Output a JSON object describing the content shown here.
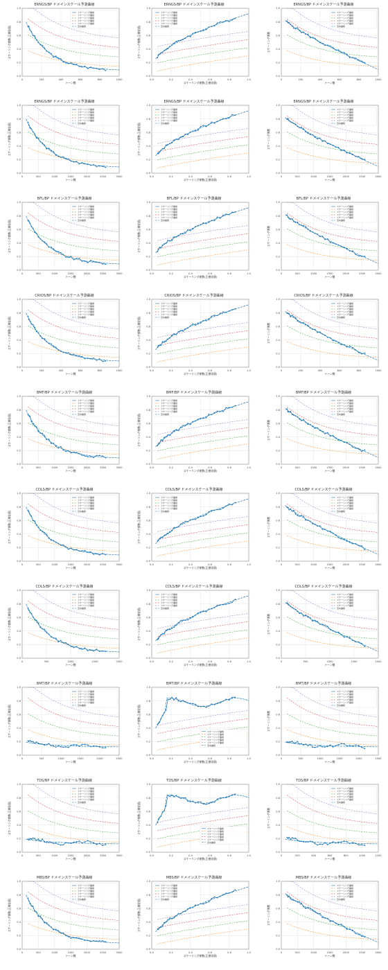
{
  "colors": {
    "actual": "#1f77b4",
    "scaling_100k": "#ff7f0e",
    "scaling_1m": "#2ca02c",
    "scaling_10m": "#d62728",
    "scaling_30m": "#9467bd",
    "fit": "#1f77b4",
    "grid": "#dddddd",
    "axis": "#333333"
  },
  "legend_text": {
    "actual": "スケーリング曲線",
    "s1": "スケーリング曲線",
    "s2": "スケーリング曲線",
    "s3": "スケーリング曲線",
    "s4": "スケーリング曲線",
    "fit": "近似曲線"
  },
  "chart_data": [
    {
      "type": "line",
      "title": "ERNGS/BP ドメインスケール予測曲線",
      "xlabel": "トーン数",
      "ylabel": "スケーリング係数(正規化値)",
      "xlim": [
        0,
        1000
      ],
      "ylim": [
        0,
        1
      ],
      "x_ticks": [
        "0",
        "200",
        "400",
        "600",
        "800",
        "1000"
      ],
      "y_ticks": [
        "0.0",
        "0.2",
        "0.4",
        "0.6",
        "0.8",
        "1.0"
      ],
      "trend": "decay",
      "legend_position": "top-right"
    },
    {
      "type": "line",
      "title": "ERNGS/BP ドメインスケール予測曲線",
      "xlabel": "スケーリング係数(正規化値)",
      "ylabel": "スケーリング係数(正規化値)",
      "xlim": [
        0,
        1
      ],
      "ylim": [
        0,
        1
      ],
      "x_ticks": [
        "0.0",
        "0.2",
        "0.4",
        "0.6",
        "0.8",
        "1.0"
      ],
      "y_ticks": [
        "0.0",
        "0.2",
        "0.4",
        "0.6",
        "0.8",
        "1.0"
      ],
      "trend": "grow",
      "legend_position": "top-left"
    },
    {
      "type": "line",
      "title": "ERNGS/BP ドメインスケール予測曲線",
      "xlabel": "トーン数",
      "ylabel": "スケーリング係数",
      "xlim": [
        0,
        1000
      ],
      "ylim": [
        0,
        1
      ],
      "x_ticks": [
        "0",
        "200",
        "400",
        "600",
        "800",
        "1000"
      ],
      "y_ticks": [
        "0.0",
        "0.2",
        "0.4",
        "0.6",
        "0.8",
        "1.0"
      ],
      "trend": "decline",
      "legend_position": "top-right"
    },
    {
      "type": "line",
      "title": "ERNGS/BP ドメインスケール予測曲線",
      "xlabel": "トーン数",
      "ylabel": "スケーリング係数(正規化値)",
      "xlim": [
        0,
        3000
      ],
      "ylim": [
        0,
        1
      ],
      "x_ticks": [
        "0",
        "500",
        "1000",
        "1500",
        "2000",
        "2500",
        "3000"
      ],
      "y_ticks": [
        "0.0",
        "0.2",
        "0.4",
        "0.6",
        "0.8",
        "1.0"
      ],
      "trend": "decay",
      "legend_position": "top-right"
    },
    {
      "type": "line",
      "title": "ERNGS/BP ドメインスケール予測曲線",
      "xlabel": "スケーリング係数(正規化値)",
      "ylabel": "スケーリング係数(正規化値)",
      "xlim": [
        0,
        1
      ],
      "ylim": [
        0,
        1
      ],
      "x_ticks": [
        "0.0",
        "0.2",
        "0.4",
        "0.6",
        "0.8",
        "1.0"
      ],
      "y_ticks": [
        "0.0",
        "0.2",
        "0.4",
        "0.6",
        "0.8",
        "1.0"
      ],
      "trend": "grow",
      "legend_position": "top-left"
    },
    {
      "type": "line",
      "title": "ERNGS/BP ドメインスケール予測曲線",
      "xlabel": "トーン数",
      "ylabel": "スケーリング係数",
      "xlim": [
        0,
        3000
      ],
      "ylim": [
        0,
        1
      ],
      "x_ticks": [
        "0",
        "500",
        "1000",
        "1500",
        "2000",
        "2500",
        "3000"
      ],
      "y_ticks": [
        "0.0",
        "0.2",
        "0.4",
        "0.6",
        "0.8",
        "1.0"
      ],
      "trend": "decline",
      "legend_position": "top-right"
    },
    {
      "type": "line",
      "title": "BFL/BP ドメインスケール予測曲線",
      "xlabel": "トーン数",
      "ylabel": "スケーリング係数(正規化値)",
      "xlim": [
        0,
        3000
      ],
      "ylim": [
        0,
        1
      ],
      "x_ticks": [
        "0",
        "500",
        "1000",
        "1500",
        "2000",
        "2500",
        "3000"
      ],
      "y_ticks": [
        "0.0",
        "0.2",
        "0.4",
        "0.6",
        "0.8",
        "1.0"
      ],
      "trend": "decay",
      "legend_position": "top-right"
    },
    {
      "type": "line",
      "title": "BFL/BP ドメインスケール予測曲線",
      "xlabel": "スケーリング係数(正規化値)",
      "ylabel": "スケーリング係数(正規化値)",
      "xlim": [
        0,
        1
      ],
      "ylim": [
        0,
        1
      ],
      "x_ticks": [
        "0.0",
        "0.2",
        "0.4",
        "0.6",
        "0.8",
        "1.0"
      ],
      "y_ticks": [
        "0.0",
        "0.2",
        "0.4",
        "0.6",
        "0.8",
        "1.0"
      ],
      "trend": "grow",
      "legend_position": "top-left"
    },
    {
      "type": "line",
      "title": "BFL/BP ドメインスケール予測曲線",
      "xlabel": "トーン数",
      "ylabel": "スケーリング係数",
      "xlim": [
        0,
        3000
      ],
      "ylim": [
        0,
        1
      ],
      "x_ticks": [
        "0",
        "500",
        "1000",
        "1500",
        "2000",
        "2500",
        "3000"
      ],
      "y_ticks": [
        "0.0",
        "0.2",
        "0.4",
        "0.6",
        "0.8",
        "1.0"
      ],
      "trend": "decline",
      "legend_position": "top-right"
    },
    {
      "type": "line",
      "title": "CRIOS/BP ドメインスケール予測曲線",
      "xlabel": "トーン数",
      "ylabel": "スケーリング係数(正規化値)",
      "xlim": [
        0,
        1000
      ],
      "ylim": [
        0,
        1
      ],
      "x_ticks": [
        "0",
        "200",
        "400",
        "600",
        "800",
        "1000"
      ],
      "y_ticks": [
        "0.0",
        "0.2",
        "0.4",
        "0.6",
        "0.8",
        "1.0"
      ],
      "trend": "decay",
      "legend_position": "top-right"
    },
    {
      "type": "line",
      "title": "CRIOS/BP ドメインスケール予測曲線",
      "xlabel": "スケーリング係数(正規化値)",
      "ylabel": "スケーリング係数(正規化値)",
      "xlim": [
        0,
        1
      ],
      "ylim": [
        0,
        1
      ],
      "x_ticks": [
        "0.0",
        "0.2",
        "0.4",
        "0.6",
        "0.8",
        "1.0"
      ],
      "y_ticks": [
        "0.0",
        "0.2",
        "0.4",
        "0.6",
        "0.8",
        "1.0"
      ],
      "trend": "grow",
      "legend_position": "top-left"
    },
    {
      "type": "line",
      "title": "CRIOS/BP ドメインスケール予測曲線",
      "xlabel": "トーン数",
      "ylabel": "スケーリング係数",
      "xlim": [
        0,
        1000
      ],
      "ylim": [
        0,
        1
      ],
      "x_ticks": [
        "0",
        "200",
        "400",
        "600",
        "800",
        "1000"
      ],
      "y_ticks": [
        "0.0",
        "0.2",
        "0.4",
        "0.6",
        "0.8",
        "1.0"
      ],
      "trend": "decline",
      "legend_position": "top-right"
    },
    {
      "type": "line",
      "title": "BMF/BP ドメインスケール予測曲線",
      "xlabel": "トーン数",
      "ylabel": "スケーリング係数(正規化値)",
      "xlim": [
        0,
        3000
      ],
      "ylim": [
        0,
        1
      ],
      "x_ticks": [
        "0",
        "500",
        "1000",
        "1500",
        "2000",
        "2500",
        "3000"
      ],
      "y_ticks": [
        "0.0",
        "0.2",
        "0.4",
        "0.6",
        "0.8",
        "1.0"
      ],
      "trend": "decay",
      "legend_position": "top-right"
    },
    {
      "type": "line",
      "title": "BMF/BP ドメインスケール予測曲線",
      "xlabel": "スケーリング係数(正規化値)",
      "ylabel": "スケーリング係数(正規化値)",
      "xlim": [
        0,
        1
      ],
      "ylim": [
        0,
        1
      ],
      "x_ticks": [
        "0.0",
        "0.2",
        "0.4",
        "0.6",
        "0.8",
        "1.0"
      ],
      "y_ticks": [
        "0.0",
        "0.2",
        "0.4",
        "0.6",
        "0.8",
        "1.0"
      ],
      "trend": "grow",
      "legend_position": "top-left"
    },
    {
      "type": "line",
      "title": "BMF/BP ドメインスケール予測曲線",
      "xlabel": "トーン数",
      "ylabel": "スケーリング係数",
      "xlim": [
        0,
        3000
      ],
      "ylim": [
        0,
        1
      ],
      "x_ticks": [
        "0",
        "500",
        "1000",
        "1500",
        "2000",
        "2500",
        "3000"
      ],
      "y_ticks": [
        "0.0",
        "0.2",
        "0.4",
        "0.6",
        "0.8",
        "1.0"
      ],
      "trend": "decline",
      "legend_position": "top-right"
    },
    {
      "type": "line",
      "title": "CDLS/BP ドメインスケール予測曲線",
      "xlabel": "トーン数",
      "ylabel": "スケーリング係数(正規化値)",
      "xlim": [
        0,
        3000
      ],
      "ylim": [
        0,
        1
      ],
      "x_ticks": [
        "0",
        "500",
        "1000",
        "1500",
        "2000",
        "2500",
        "3000"
      ],
      "y_ticks": [
        "0.0",
        "0.2",
        "0.4",
        "0.6",
        "0.8",
        "1.0"
      ],
      "trend": "decay",
      "legend_position": "top-right"
    },
    {
      "type": "line",
      "title": "CDLS/BP ドメインスケール予測曲線",
      "xlabel": "スケーリング係数(正規化値)",
      "ylabel": "スケーリング係数(正規化値)",
      "xlim": [
        0,
        1
      ],
      "ylim": [
        0,
        1
      ],
      "x_ticks": [
        "0.0",
        "0.2",
        "0.4",
        "0.6",
        "0.8",
        "1.0"
      ],
      "y_ticks": [
        "0.0",
        "0.2",
        "0.4",
        "0.6",
        "0.8",
        "1.0"
      ],
      "trend": "grow",
      "legend_position": "top-left"
    },
    {
      "type": "line",
      "title": "CDLS/BP ドメインスケール予測曲線",
      "xlabel": "トーン数",
      "ylabel": "スケーリング係数",
      "xlim": [
        0,
        3000
      ],
      "ylim": [
        0,
        1
      ],
      "x_ticks": [
        "0",
        "500",
        "1000",
        "1500",
        "2000",
        "2500",
        "3000"
      ],
      "y_ticks": [
        "0.0",
        "0.2",
        "0.4",
        "0.6",
        "0.8",
        "1.0"
      ],
      "trend": "decline",
      "legend_position": "top-right"
    },
    {
      "type": "line",
      "title": "CDLS/BP ドメインスケール予測曲線",
      "xlabel": "トーン数",
      "ylabel": "スケーリング係数(正規化値)",
      "xlim": [
        0,
        2000
      ],
      "ylim": [
        0,
        1
      ],
      "x_ticks": [
        "0",
        "500",
        "1000",
        "1500",
        "2000"
      ],
      "y_ticks": [
        "0.0",
        "0.2",
        "0.4",
        "0.6",
        "0.8",
        "1.0"
      ],
      "trend": "decay",
      "legend_position": "top-right"
    },
    {
      "type": "line",
      "title": "CDLS/BP ドメインスケール予測曲線",
      "xlabel": "スケーリング係数(正規化値)",
      "ylabel": "スケーリング係数(正規化値)",
      "xlim": [
        0,
        1
      ],
      "ylim": [
        0,
        1
      ],
      "x_ticks": [
        "0.0",
        "0.2",
        "0.4",
        "0.6",
        "0.8",
        "1.0"
      ],
      "y_ticks": [
        "0.0",
        "0.2",
        "0.4",
        "0.6",
        "0.8",
        "1.0"
      ],
      "trend": "grow",
      "legend_position": "top-left"
    },
    {
      "type": "line",
      "title": "CDLS/BP ドメインスケール予測曲線",
      "xlabel": "トーン数",
      "ylabel": "スケーリング係数",
      "xlim": [
        0,
        2000
      ],
      "ylim": [
        0,
        1
      ],
      "x_ticks": [
        "0",
        "500",
        "1000",
        "1500",
        "2000"
      ],
      "y_ticks": [
        "0.0",
        "0.2",
        "0.4",
        "0.6",
        "0.8",
        "1.0"
      ],
      "trend": "decline",
      "legend_position": "top-right"
    },
    {
      "type": "line",
      "title": "BMT/BP ドメインスケール予測曲線",
      "xlabel": "トーン数",
      "ylabel": "スケーリング係数(正規化値)",
      "xlim": [
        0,
        2500
      ],
      "ylim": [
        0,
        1
      ],
      "x_ticks": [
        "0",
        "500",
        "1000",
        "1500",
        "2000",
        "2500"
      ],
      "y_ticks": [
        "0.0",
        "0.2",
        "0.4",
        "0.6",
        "0.8",
        "1.0"
      ],
      "trend": "flat",
      "legend_position": "top-right"
    },
    {
      "type": "line",
      "title": "BMT/BP ドメインスケール予測曲線",
      "xlabel": "スケーリング係数(正規化値)",
      "ylabel": "スケーリング係数(正規化値)",
      "xlim": [
        0,
        1
      ],
      "ylim": [
        0,
        1
      ],
      "x_ticks": [
        "0.0",
        "0.2",
        "0.4",
        "0.6",
        "0.8",
        "1.0"
      ],
      "y_ticks": [
        "0.0",
        "0.2",
        "0.4",
        "0.6",
        "0.8",
        "1.0"
      ],
      "trend": "jump",
      "legend_position": "bottom-right"
    },
    {
      "type": "line",
      "title": "BMT/BP ドメインスケール予測曲線",
      "xlabel": "トーン数",
      "ylabel": "スケーリング係数",
      "xlim": [
        0,
        2500
      ],
      "ylim": [
        0,
        1
      ],
      "x_ticks": [
        "0",
        "500",
        "1000",
        "1500",
        "2000",
        "2500"
      ],
      "y_ticks": [
        "0.0",
        "0.2",
        "0.4",
        "0.6",
        "0.8",
        "1.0"
      ],
      "trend": "flat",
      "legend_position": "top-right"
    },
    {
      "type": "line",
      "title": "TDS/BP ドメインスケール予測曲線",
      "xlabel": "トーン数",
      "ylabel": "スケーリング係数(正規化値)",
      "xlim": [
        0,
        3000
      ],
      "ylim": [
        0,
        1
      ],
      "x_ticks": [
        "0",
        "500",
        "1000",
        "1500",
        "2000",
        "2500",
        "3000"
      ],
      "y_ticks": [
        "0.0",
        "0.2",
        "0.4",
        "0.6",
        "0.8",
        "1.0"
      ],
      "trend": "flat",
      "legend_position": "top-right"
    },
    {
      "type": "line",
      "title": "TDS/BP ドメインスケール予測曲線",
      "xlabel": "スケーリング係数(正規化値)",
      "ylabel": "スケーリング係数(正規化値)",
      "xlim": [
        0,
        1
      ],
      "ylim": [
        0,
        1
      ],
      "x_ticks": [
        "0.0",
        "0.2",
        "0.4",
        "0.6",
        "0.8",
        "1.0"
      ],
      "y_ticks": [
        "0.0",
        "0.2",
        "0.4",
        "0.6",
        "0.8",
        "1.0"
      ],
      "trend": "jump",
      "legend_position": "bottom-right"
    },
    {
      "type": "line",
      "title": "TDS/BP ドメインスケール予測曲線",
      "xlabel": "トーン数",
      "ylabel": "スケーリング係数",
      "xlim": [
        0,
        1200
      ],
      "ylim": [
        0,
        1
      ],
      "x_ticks": [
        "0",
        "200",
        "400",
        "600",
        "800",
        "1000",
        "1200"
      ],
      "y_ticks": [
        "0.0",
        "0.2",
        "0.4",
        "0.6",
        "0.8",
        "1.0"
      ],
      "trend": "flat",
      "legend_position": "top-right"
    },
    {
      "type": "line",
      "title": "MBS/BP ドメインスケール予測曲線",
      "xlabel": "トーン数",
      "ylabel": "スケーリング係数(正規化値)",
      "xlim": [
        0,
        3000
      ],
      "ylim": [
        0,
        1
      ],
      "x_ticks": [
        "0",
        "500",
        "1000",
        "1500",
        "2000",
        "2500",
        "3000"
      ],
      "y_ticks": [
        "0.0",
        "0.2",
        "0.4",
        "0.6",
        "0.8",
        "1.0"
      ],
      "trend": "decay",
      "legend_position": "top-right"
    },
    {
      "type": "line",
      "title": "MBS/BP ドメインスケール予測曲線",
      "xlabel": "スケーリング係数(正規化値)",
      "ylabel": "スケーリング係数(正規化値)",
      "xlim": [
        0,
        1
      ],
      "ylim": [
        0,
        1
      ],
      "x_ticks": [
        "0.0",
        "0.2",
        "0.4",
        "0.6",
        "0.8",
        "1.0"
      ],
      "y_ticks": [
        "0.0",
        "0.2",
        "0.4",
        "0.6",
        "0.8",
        "1.0"
      ],
      "trend": "grow",
      "legend_position": "top-left"
    },
    {
      "type": "line",
      "title": "MBS/BP ドメインスケール予測曲線",
      "xlabel": "トーン数",
      "ylabel": "スケーリング係数",
      "xlim": [
        0,
        3000
      ],
      "ylim": [
        0,
        1
      ],
      "x_ticks": [
        "0",
        "500",
        "1000",
        "1500",
        "2000",
        "2500",
        "3000"
      ],
      "y_ticks": [
        "0.0",
        "0.2",
        "0.4",
        "0.6",
        "0.8",
        "1.0"
      ],
      "trend": "decline",
      "legend_position": "top-right"
    }
  ]
}
